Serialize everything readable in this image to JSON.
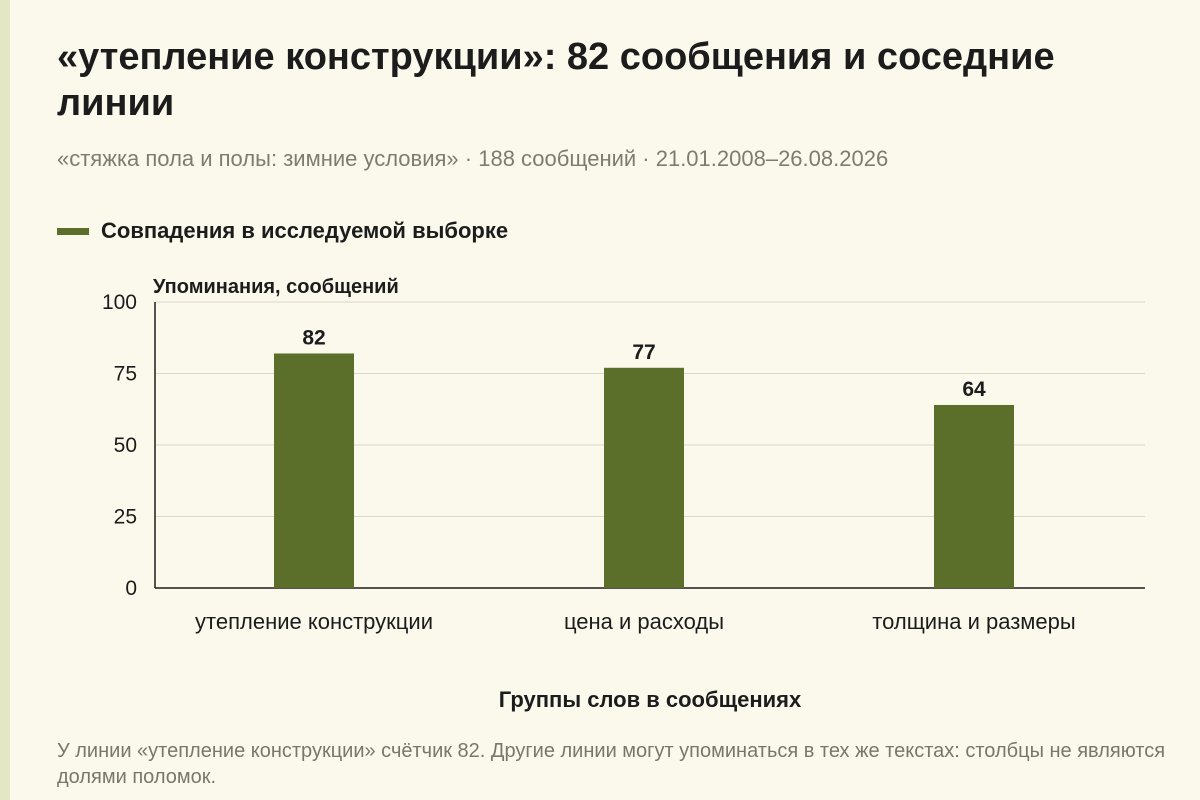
{
  "title": "«утепление конструкции»: 82 сообщения и соседние линии",
  "subtitle": "«стяжка пола и полы: зимние условия» · 188 сообщений · 21.01.2008–26.08.2026",
  "note": "У линии «утепление конструкции» счётчик 82. Другие линии могут упоминаться в тех же текстах: столбцы не являются долями поломок.",
  "colors": {
    "bar": "#5b6e2a",
    "grid": "#d8d8cc",
    "axis": "#1c1c1c",
    "background": "#fbf9ec"
  },
  "chart_data": {
    "type": "bar",
    "title": "",
    "categories": [
      "утепление конструкции",
      "цена и расходы",
      "толщина и размеры"
    ],
    "series": [
      {
        "name": "Совпадения в исследуемой выборке",
        "values": [
          82,
          77,
          64
        ]
      }
    ],
    "xlabel": "Группы слов в сообщениях",
    "ylabel": "Упоминания, сообщений",
    "ylim": [
      0,
      100
    ],
    "yticks": [
      0,
      25,
      50,
      75,
      100
    ],
    "grid": true,
    "legend": "top-left",
    "data_labels": true
  }
}
